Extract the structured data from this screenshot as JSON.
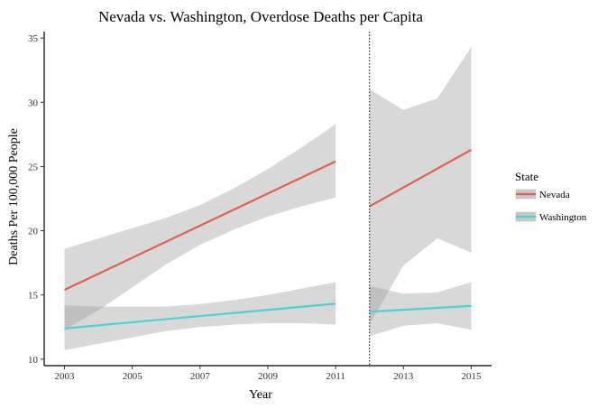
{
  "chart_data": {
    "type": "line",
    "title": "Nevada vs. Washington, Overdose Deaths per Capita",
    "xlabel": "Year",
    "ylabel": "Deaths Per 100,000 People",
    "xlim": [
      2002.4,
      2015.6
    ],
    "ylim": [
      9.5,
      35.5
    ],
    "x_ticks": [
      2003,
      2005,
      2007,
      2009,
      2011,
      2013,
      2015
    ],
    "x_tick_labels": [
      "2003",
      "2005",
      "2007",
      "2009",
      "2011",
      "2013",
      "2015"
    ],
    "y_ticks": [
      10,
      15,
      20,
      25,
      30,
      35
    ],
    "y_tick_labels": [
      "10",
      "15",
      "20",
      "25",
      "30",
      "35"
    ],
    "vline": {
      "x": 2012,
      "style": "dotted"
    },
    "grid": false,
    "legend": {
      "title": "State",
      "position": "right"
    },
    "series": [
      {
        "name": "Nevada",
        "color": "#e0604f",
        "segments": [
          {
            "x": [
              2003,
              2004,
              2005,
              2006,
              2007,
              2008,
              2009,
              2010,
              2011
            ],
            "y": [
              15.4,
              16.65,
              17.9,
              19.15,
              20.4,
              21.65,
              22.9,
              24.15,
              25.4
            ],
            "lower": [
              12.3,
              13.8,
              15.6,
              17.4,
              18.9,
              20.1,
              21.1,
              21.9,
              22.6
            ],
            "upper": [
              18.6,
              19.4,
              20.2,
              21.0,
              22.0,
              23.3,
              24.8,
              26.5,
              28.3
            ]
          },
          {
            "x": [
              2012,
              2013,
              2014,
              2015
            ],
            "y": [
              21.9,
              23.35,
              24.8,
              26.3
            ],
            "lower": [
              12.7,
              17.3,
              19.4,
              18.3
            ],
            "upper": [
              31.0,
              29.4,
              30.3,
              34.3
            ]
          }
        ]
      },
      {
        "name": "Washington",
        "color": "#4fcfd8",
        "segments": [
          {
            "x": [
              2003,
              2004,
              2005,
              2006,
              2007,
              2008,
              2009,
              2010,
              2011
            ],
            "y": [
              12.4,
              12.64,
              12.88,
              13.12,
              13.36,
              13.6,
              13.84,
              14.08,
              14.32
            ],
            "lower": [
              10.7,
              11.2,
              11.7,
              12.2,
              12.5,
              12.7,
              12.8,
              12.8,
              12.7
            ],
            "upper": [
              14.2,
              14.1,
              14.1,
              14.1,
              14.3,
              14.6,
              15.0,
              15.5,
              16.0
            ]
          },
          {
            "x": [
              2012,
              2013,
              2014,
              2015
            ],
            "y": [
              13.7,
              13.85,
              14.0,
              14.15
            ],
            "lower": [
              11.8,
              12.6,
              12.8,
              12.3
            ],
            "upper": [
              15.7,
              15.1,
              15.2,
              16.0
            ]
          }
        ]
      }
    ]
  }
}
